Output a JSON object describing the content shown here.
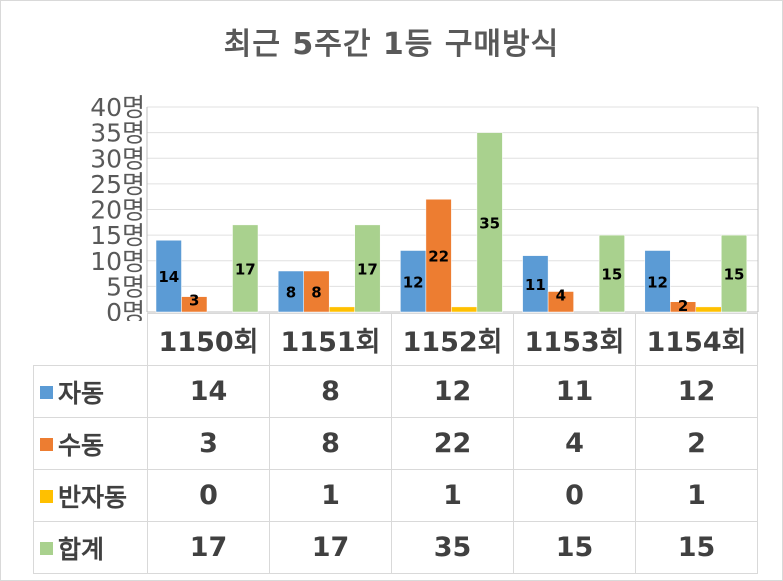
{
  "chart_data": {
    "type": "bar",
    "title": "최근 5주간 1등 구매방식",
    "categories": [
      "1150회",
      "1151회",
      "1152회",
      "1153회",
      "1154회"
    ],
    "series": [
      {
        "name": "자동",
        "color": "#5b9bd5",
        "values": [
          14,
          8,
          12,
          11,
          12
        ]
      },
      {
        "name": "수동",
        "color": "#ed7d31",
        "values": [
          3,
          8,
          22,
          4,
          2
        ]
      },
      {
        "name": "반자동",
        "color": "#ffc000",
        "values": [
          0,
          1,
          1,
          0,
          1
        ]
      },
      {
        "name": "합계",
        "color": "#a9d18e",
        "values": [
          17,
          17,
          35,
          15,
          15
        ]
      }
    ],
    "ylim": [
      0,
      40
    ],
    "ytick_values": [
      0,
      5,
      10,
      15,
      20,
      25,
      30,
      35,
      40
    ],
    "ytick_labels": [
      "0명",
      "5명",
      "10명",
      "15명",
      "20명",
      "25명",
      "30명",
      "35명",
      "40명"
    ],
    "data_labels_shown_for": [
      "자동",
      "수동",
      "합계"
    ],
    "grid": true,
    "legend": "data-table"
  }
}
